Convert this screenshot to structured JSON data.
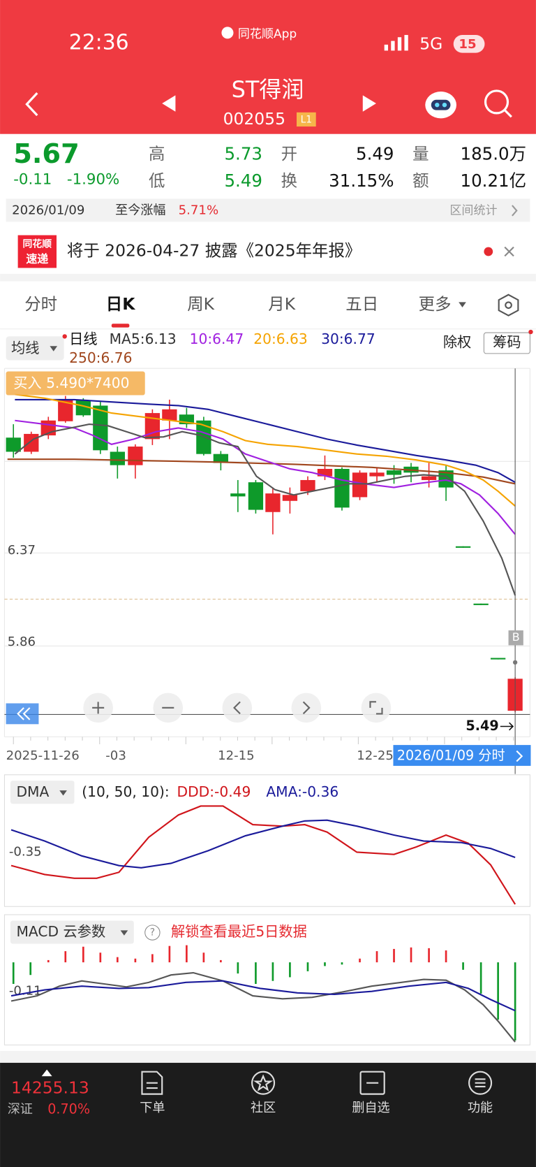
{
  "status": {
    "time": "22:36",
    "app": "同花顺App",
    "network": "5G",
    "battery": "15"
  },
  "header": {
    "title": "ST得润",
    "code": "002055",
    "badge": "L1"
  },
  "quote": {
    "price": "5.67",
    "change": "-0.11",
    "change_pct": "-1.90%",
    "stats": [
      {
        "label": "高",
        "value": "5.73"
      },
      {
        "label": "开",
        "value": "5.49"
      },
      {
        "label": "量",
        "value": "185.0万"
      },
      {
        "label": "低",
        "value": "5.49"
      },
      {
        "label": "换",
        "value": "31.15%"
      },
      {
        "label": "额",
        "value": "10.21亿"
      }
    ]
  },
  "range": {
    "date": "2026/01/09",
    "label": "至今涨幅",
    "value": "5.71%",
    "action": "区间统计"
  },
  "notice": {
    "logo_top": "同花顺",
    "logo_bottom": "速递",
    "text": "将于 2026-04-27 披露《2025年年报》"
  },
  "tabs": [
    "分时",
    "日K",
    "周K",
    "月K",
    "五日",
    "更多"
  ],
  "ma": {
    "selector": "均线",
    "line_type": "日线",
    "items": [
      "MA5:6.13",
      "10:6.47",
      "20:6.63",
      "30:6.77",
      "250:6.76"
    ],
    "buttons": [
      "除权",
      "筹码"
    ]
  },
  "chart": {
    "order": "买入 5.490*7400",
    "price_labels": [
      "6.37",
      "5.86"
    ],
    "last_price": "5.49",
    "marker": "B",
    "dates": [
      "2025-11-26",
      "-03",
      "12-15",
      "12-25"
    ],
    "crosshair_date": "2026/01/09 分时"
  },
  "dma": {
    "name": "DMA",
    "params": "(10, 50, 10):",
    "ddd": "DDD:-0.49",
    "ama": "AMA:-0.36",
    "axis_label": "-0.35"
  },
  "macd": {
    "name": "MACD 云参数",
    "help": "?",
    "unlock": "解锁查看最近5日数据",
    "axis_label": "-0.11"
  },
  "bottom": {
    "index_value": "14255.13",
    "index_name": "深证",
    "index_change": "0.70%",
    "nav": [
      "下单",
      "社区",
      "删自选",
      "功能"
    ]
  }
}
